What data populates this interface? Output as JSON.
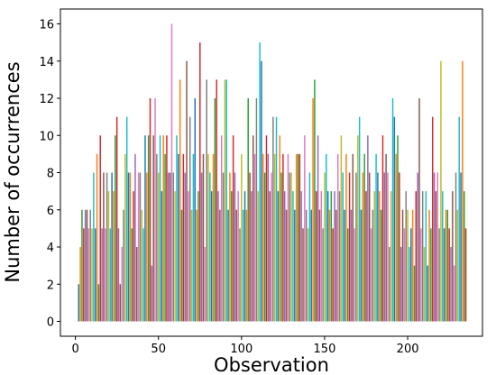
{
  "chart_data": {
    "type": "bar",
    "xlabel": "Observation",
    "ylabel": "Number of occurrences",
    "colors": [
      "#1f77b4",
      "#ff7f0e",
      "#2ca02c",
      "#d62728",
      "#9467bd",
      "#8c564b",
      "#e377c2",
      "#7f7f7f",
      "#bcbd22",
      "#17becf"
    ],
    "bar_width": 0.8,
    "x": [
      2,
      3,
      4,
      5,
      6,
      7,
      8,
      9,
      10,
      11,
      12,
      13,
      14,
      15,
      16,
      17,
      18,
      19,
      20,
      21,
      22,
      23,
      24,
      25,
      26,
      27,
      28,
      29,
      30,
      31,
      32,
      33,
      34,
      35,
      36,
      37,
      38,
      39,
      40,
      41,
      42,
      43,
      44,
      45,
      46,
      47,
      48,
      49,
      50,
      51,
      52,
      53,
      54,
      55,
      56,
      57,
      58,
      59,
      60,
      61,
      62,
      63,
      64,
      65,
      66,
      67,
      68,
      69,
      70,
      71,
      72,
      73,
      74,
      75,
      76,
      77,
      78,
      79,
      80,
      81,
      82,
      83,
      84,
      85,
      86,
      87,
      88,
      89,
      90,
      91,
      92,
      93,
      94,
      95,
      96,
      97,
      98,
      99,
      100,
      101,
      102,
      103,
      104,
      105,
      106,
      107,
      108,
      109,
      110,
      111,
      112,
      113,
      114,
      115,
      116,
      117,
      118,
      119,
      120,
      121,
      122,
      123,
      124,
      125,
      126,
      127,
      128,
      129,
      130,
      131,
      132,
      133,
      134,
      135,
      136,
      137,
      138,
      139,
      140,
      141,
      142,
      143,
      144,
      145,
      146,
      147,
      148,
      149,
      150,
      151,
      152,
      153,
      154,
      155,
      156,
      157,
      158,
      159,
      160,
      161,
      162,
      163,
      164,
      165,
      166,
      167,
      168,
      169,
      170,
      171,
      172,
      173,
      174,
      175,
      176,
      177,
      178,
      179,
      180,
      181,
      182,
      183,
      184,
      185,
      186,
      187,
      188,
      189,
      190,
      191,
      192,
      193,
      194,
      195,
      196,
      197,
      198,
      199,
      200,
      201,
      202,
      203,
      204,
      205,
      206,
      207,
      208,
      209,
      210,
      211,
      212,
      213,
      214,
      215,
      216,
      217,
      218,
      219,
      220,
      221,
      222,
      223,
      224,
      225,
      226,
      227,
      228,
      229,
      230,
      231,
      232,
      233,
      234,
      235
    ],
    "values": [
      2,
      4,
      6,
      5,
      6,
      6,
      5,
      6,
      5,
      8,
      5,
      9,
      2,
      10,
      5,
      8,
      5,
      8,
      7,
      5,
      8,
      7,
      10,
      11,
      5,
      2,
      4,
      6,
      9,
      11,
      8,
      8,
      5,
      7,
      9,
      4,
      8,
      8,
      6,
      5,
      10,
      8,
      10,
      12,
      3,
      10,
      12,
      9,
      8,
      10,
      7,
      10,
      9,
      10,
      8,
      8,
      16,
      8,
      7,
      10,
      9,
      13,
      6,
      9,
      8,
      14,
      7,
      11,
      6,
      9,
      12,
      6,
      7,
      15,
      8,
      9,
      4,
      13,
      9,
      8,
      7,
      9,
      12,
      13,
      7,
      6,
      10,
      8,
      13,
      13,
      6,
      8,
      7,
      10,
      8,
      6,
      7,
      5,
      9,
      6,
      7,
      6,
      12,
      8,
      7,
      10,
      9,
      12,
      7,
      15,
      14,
      9,
      8,
      10,
      9,
      7,
      8,
      11,
      9,
      11,
      7,
      10,
      8,
      9,
      7,
      6,
      9,
      8,
      8,
      7,
      6,
      9,
      9,
      9,
      7,
      5,
      10,
      6,
      5,
      8,
      6,
      12,
      13,
      7,
      10,
      6,
      7,
      5,
      8,
      9,
      7,
      6,
      7,
      5,
      7,
      6,
      9,
      7,
      10,
      8,
      6,
      9,
      5,
      8,
      6,
      9,
      5,
      8,
      10,
      11,
      6,
      8,
      9,
      7,
      10,
      8,
      5,
      6,
      7,
      9,
      8,
      7,
      6,
      10,
      8,
      9,
      8,
      4,
      7,
      12,
      11,
      9,
      10,
      8,
      4,
      6,
      5,
      7,
      6,
      4,
      5,
      6,
      3,
      7,
      8,
      12,
      5,
      7,
      4,
      7,
      3,
      6,
      5,
      11,
      8,
      7,
      8,
      5,
      14,
      7,
      5,
      6,
      6,
      5,
      4,
      7,
      3,
      8,
      6,
      11,
      8,
      14,
      7,
      5
    ],
    "xlim": [
      -9,
      245
    ],
    "ylim": [
      -0.8,
      16.8
    ],
    "xticks": [
      0,
      50,
      100,
      150,
      200
    ],
    "yticks": [
      0,
      2,
      4,
      6,
      8,
      10,
      12,
      14,
      16
    ]
  }
}
